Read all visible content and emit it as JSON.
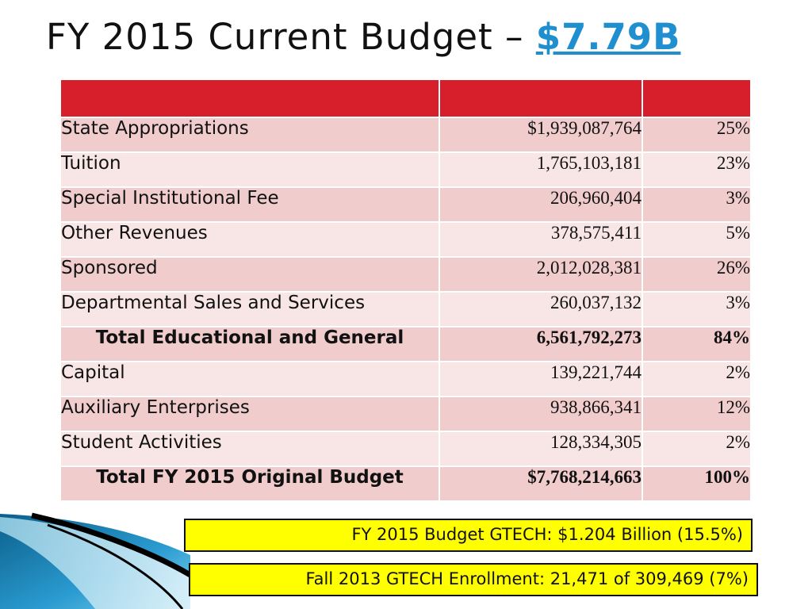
{
  "slide": {
    "title_prefix": "FY 2015 Current Budget – ",
    "title_amount": "$7.79B"
  },
  "table": {
    "header": [
      "",
      "",
      ""
    ],
    "rows": [
      {
        "label": "State Appropriations",
        "amount": "$1,939,087,764",
        "percent": "25%",
        "total": false
      },
      {
        "label": "Tuition",
        "amount": "1,765,103,181",
        "percent": "23%",
        "total": false
      },
      {
        "label": "Special Institutional Fee",
        "amount": "206,960,404",
        "percent": "3%",
        "total": false
      },
      {
        "label": "Other Revenues",
        "amount": "378,575,411",
        "percent": "5%",
        "total": false
      },
      {
        "label": "Sponsored",
        "amount": "2,012,028,381",
        "percent": "26%",
        "total": false
      },
      {
        "label": "Departmental Sales and Services",
        "amount": "260,037,132",
        "percent": "3%",
        "total": false
      },
      {
        "label": "Total Educational and General",
        "amount": "6,561,792,273",
        "percent": "84%",
        "total": true
      },
      {
        "label": "Capital",
        "amount": "139,221,744",
        "percent": "2%",
        "total": false
      },
      {
        "label": "Auxiliary Enterprises",
        "amount": "938,866,341",
        "percent": "12%",
        "total": false
      },
      {
        "label": "Student Activities",
        "amount": "128,334,305",
        "percent": "2%",
        "total": false
      },
      {
        "label": "Total FY 2015 Original Budget",
        "amount": "$7,768,214,663",
        "percent": "100%",
        "total": true
      }
    ]
  },
  "notes": {
    "budget": "FY 2015 Budget GTECH:  $1.204 Billion (15.5%)",
    "enrollment": "Fall 2013  GTECH Enrollment: 21,471 of 309,469 (7%)"
  },
  "colors": {
    "header_red": "#d71f2b",
    "row_dark": "#f0cccd",
    "row_light": "#f8e6e6",
    "note_yellow": "#ffff00",
    "link_blue": "#1f8fd0"
  }
}
